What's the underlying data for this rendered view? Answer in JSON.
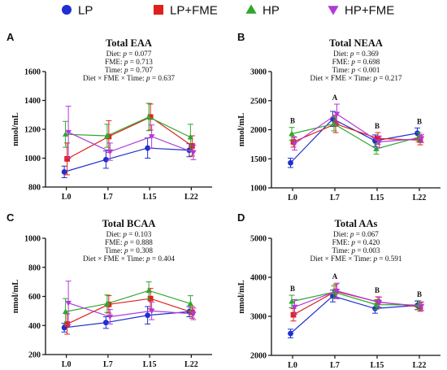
{
  "legend": [
    {
      "label": "LP",
      "color": "#1f2fd0",
      "marker": "circle"
    },
    {
      "label": "LP+FME",
      "color": "#e0201c",
      "marker": "square"
    },
    {
      "label": "HP",
      "color": "#2ea82e",
      "marker": "triangle-up"
    },
    {
      "label": "HP+FME",
      "color": "#b03ad8",
      "marker": "triangle-down"
    }
  ],
  "chart_data": [
    {
      "letter": "A",
      "type": "line",
      "title": "Total EAA",
      "stats": [
        {
          "prefix": "Diet: ",
          "p": "p",
          "suffix": " = 0.077"
        },
        {
          "prefix": "FME: ",
          "p": "p",
          "suffix": " = 0.713"
        },
        {
          "prefix": "Time: ",
          "p": "p",
          "suffix": " = 0.707"
        },
        {
          "prefix": "Diet × FME × Time: ",
          "p": "p",
          "suffix": " = 0.637"
        }
      ],
      "ylabel": "nmol/mL",
      "ylim": [
        800,
        1600
      ],
      "yticks": [
        800,
        1000,
        1200,
        1400,
        1600
      ],
      "categories": [
        "L0",
        "L7",
        "L15",
        "L22"
      ],
      "significance": [
        "",
        "",
        "",
        ""
      ],
      "series": [
        {
          "name": "LP",
          "values": [
            905,
            990,
            1070,
            1055
          ],
          "err": [
            40,
            60,
            70,
            45
          ]
        },
        {
          "name": "LP+FME",
          "values": [
            995,
            1150,
            1285,
            1085
          ],
          "err": [
            110,
            110,
            90,
            70
          ]
        },
        {
          "name": "HP",
          "values": [
            1165,
            1155,
            1285,
            1145
          ],
          "err": [
            90,
            80,
            95,
            90
          ]
        },
        {
          "name": "HP+FME",
          "values": [
            1180,
            1045,
            1150,
            1040
          ],
          "err": [
            180,
            60,
            80,
            50
          ]
        }
      ]
    },
    {
      "letter": "B",
      "type": "line",
      "title": "Total NEAA",
      "stats": [
        {
          "prefix": "Diet: ",
          "p": "p",
          "suffix": " = 0.369"
        },
        {
          "prefix": "FME: ",
          "p": "p",
          "suffix": " = 0.698"
        },
        {
          "prefix": "Time: ",
          "p": "p",
          "suffix": " < 0.001"
        },
        {
          "prefix": "Diet × FME × Time: ",
          "p": "p",
          "suffix": " = 0.217"
        }
      ],
      "ylabel": "nmol/mL",
      "ylim": [
        1000,
        3000
      ],
      "yticks": [
        1000,
        1500,
        2000,
        2500,
        3000
      ],
      "categories": [
        "L0",
        "L7",
        "L15",
        "L22"
      ],
      "significance": [
        "B",
        "A",
        "B",
        "B"
      ],
      "series": [
        {
          "name": "LP",
          "values": [
            1430,
            2185,
            1810,
            1940
          ],
          "err": [
            80,
            130,
            100,
            90
          ]
        },
        {
          "name": "LP+FME",
          "values": [
            1790,
            2100,
            1850,
            1820
          ],
          "err": [
            90,
            150,
            100,
            80
          ]
        },
        {
          "name": "HP",
          "values": [
            1930,
            2100,
            1670,
            1870
          ],
          "err": [
            110,
            120,
            90,
            80
          ]
        },
        {
          "name": "HP+FME",
          "values": [
            1760,
            2270,
            1790,
            1850
          ],
          "err": [
            110,
            170,
            100,
            70
          ]
        }
      ]
    },
    {
      "letter": "C",
      "type": "line",
      "title": "Total BCAA",
      "stats": [
        {
          "prefix": "Diet: ",
          "p": "p",
          "suffix": " = 0.103"
        },
        {
          "prefix": "FME: ",
          "p": "p",
          "suffix": " = 0.888"
        },
        {
          "prefix": "Time: ",
          "p": "p",
          "suffix": " = 0.308"
        },
        {
          "prefix": "Diet × FME × Time: ",
          "p": "p",
          "suffix": " = 0.404"
        }
      ],
      "ylabel": "nmol/mL",
      "ylim": [
        200,
        1000
      ],
      "yticks": [
        200,
        400,
        600,
        800,
        1000
      ],
      "categories": [
        "L0",
        "L7",
        "L15",
        "L22"
      ],
      "significance": [
        "",
        "",
        "",
        ""
      ],
      "series": [
        {
          "name": "LP",
          "values": [
            385,
            420,
            470,
            495
          ],
          "err": [
            30,
            40,
            60,
            35
          ]
        },
        {
          "name": "LP+FME",
          "values": [
            410,
            545,
            585,
            490
          ],
          "err": [
            70,
            60,
            70,
            40
          ]
        },
        {
          "name": "HP",
          "values": [
            495,
            550,
            640,
            550
          ],
          "err": [
            90,
            60,
            60,
            55
          ]
        },
        {
          "name": "HP+FME",
          "values": [
            555,
            460,
            500,
            480
          ],
          "err": [
            150,
            50,
            60,
            40
          ]
        }
      ]
    },
    {
      "letter": "D",
      "type": "line",
      "title": "Total AAs",
      "stats": [
        {
          "prefix": "Diet: ",
          "p": "p",
          "suffix": " = 0.067"
        },
        {
          "prefix": "FME: ",
          "p": "p",
          "suffix": " = 0.420"
        },
        {
          "prefix": "Time: ",
          "p": "p",
          "suffix": " = 0.003"
        },
        {
          "prefix": "Diet × FME × Time: ",
          "p": "p",
          "suffix": " = 0.591"
        }
      ],
      "ylabel": "nmol/mL",
      "ylim": [
        2000,
        5000
      ],
      "yticks": [
        2000,
        3000,
        4000,
        5000
      ],
      "categories": [
        "L0",
        "L7",
        "L15",
        "L22"
      ],
      "significance": [
        "B",
        "A",
        "B",
        "B"
      ],
      "series": [
        {
          "name": "LP",
          "values": [
            2560,
            3520,
            3200,
            3280
          ],
          "err": [
            110,
            150,
            120,
            110
          ]
        },
        {
          "name": "LP+FME",
          "values": [
            3040,
            3640,
            3370,
            3240
          ],
          "err": [
            160,
            180,
            130,
            110
          ]
        },
        {
          "name": "HP",
          "values": [
            3380,
            3620,
            3300,
            3290
          ],
          "err": [
            160,
            160,
            120,
            110
          ]
        },
        {
          "name": "HP+FME",
          "values": [
            3240,
            3650,
            3360,
            3260
          ],
          "err": [
            190,
            200,
            130,
            110
          ]
        }
      ]
    }
  ]
}
